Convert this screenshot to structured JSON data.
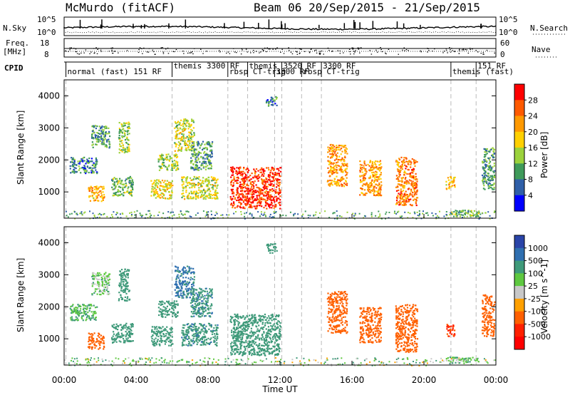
{
  "header": {
    "station": "McMurdo (fitACF)",
    "beam_date": "Beam 06  20/Sep/2015 - 21/Sep/2015"
  },
  "strip_labels": {
    "nsky": "N.Sky",
    "nsky_ticks": [
      "10^5",
      "10^0"
    ],
    "nsearch": "N.Search",
    "nsearch_ticks": [
      "10^5",
      "10^0"
    ],
    "freq_line1": "Freq.",
    "freq_line2": "[MHz]",
    "freq_ticks": [
      "18",
      "8"
    ],
    "nave": "Nave",
    "nave_ticks": [
      "60",
      "0"
    ],
    "cpid": "CPID"
  },
  "cpid_labels": [
    {
      "text": "normal (fast) 151 RF",
      "t": 0.1
    },
    {
      "text": "themis 3300 RF",
      "t": 6.0
    },
    {
      "text": "rbsp CT-trig",
      "t": 9.1
    },
    {
      "text": "themis",
      "t": 10.2
    },
    {
      "text": "3300 RF",
      "t": 11.7
    },
    {
      "text": "3520 RF",
      "t": 12.1
    },
    {
      "text": "rbsp CT-trig",
      "t": 13.2
    },
    {
      "text": "3300 RF",
      "t": 14.3
    },
    {
      "text": "themis (fast)",
      "t": 21.5
    },
    {
      "text": "151 RF",
      "t": 22.9
    }
  ],
  "chart_data": [
    {
      "type": "heatmap",
      "name": "power",
      "xlabel": "",
      "ylabel": "Slant Range [km]",
      "xlim": [
        0,
        24
      ],
      "ylim": [
        180,
        4500
      ],
      "yticks": [
        "1000",
        "2000",
        "3000",
        "4000"
      ],
      "colorbar": {
        "label": "Power [dB]",
        "ticks": [
          "28",
          "24",
          "20",
          "16",
          "12",
          "8",
          "4"
        ],
        "colors": [
          "#ff0000",
          "#ff5a00",
          "#ff9900",
          "#ffd000",
          "#9bd23c",
          "#3f9a5a",
          "#2f5fa8",
          "#0000ff"
        ]
      },
      "blobs": [
        {
          "t0": 0.3,
          "t1": 1.8,
          "r0": 1600,
          "r1": 2100,
          "v": 8
        },
        {
          "t0": 1.3,
          "t1": 2.2,
          "r0": 700,
          "r1": 1200,
          "v": 20
        },
        {
          "t0": 1.5,
          "t1": 2.5,
          "r0": 2400,
          "r1": 3100,
          "v": 10
        },
        {
          "t0": 2.6,
          "t1": 3.8,
          "r0": 900,
          "r1": 1500,
          "v": 12
        },
        {
          "t0": 3.0,
          "t1": 3.6,
          "r0": 2200,
          "r1": 3200,
          "v": 14
        },
        {
          "t0": 4.8,
          "t1": 6.0,
          "r0": 800,
          "r1": 1400,
          "v": 18
        },
        {
          "t0": 5.2,
          "t1": 6.3,
          "r0": 1700,
          "r1": 2200,
          "v": 14
        },
        {
          "t0": 6.1,
          "t1": 7.2,
          "r0": 2300,
          "r1": 3300,
          "v": 16
        },
        {
          "t0": 6.5,
          "t1": 8.5,
          "r0": 800,
          "r1": 1500,
          "v": 16
        },
        {
          "t0": 7.0,
          "t1": 8.2,
          "r0": 1700,
          "r1": 2600,
          "v": 10
        },
        {
          "t0": 9.2,
          "t1": 12.0,
          "r0": 500,
          "r1": 1800,
          "v": 28
        },
        {
          "t0": 11.2,
          "t1": 11.8,
          "r0": 3700,
          "r1": 4000,
          "v": 8
        },
        {
          "t0": 14.6,
          "t1": 15.7,
          "r0": 1200,
          "r1": 2500,
          "v": 22
        },
        {
          "t0": 16.4,
          "t1": 17.6,
          "r0": 900,
          "r1": 2000,
          "v": 22
        },
        {
          "t0": 18.4,
          "t1": 19.6,
          "r0": 600,
          "r1": 2100,
          "v": 24
        },
        {
          "t0": 21.2,
          "t1": 21.7,
          "r0": 1100,
          "r1": 1500,
          "v": 20
        },
        {
          "t0": 21.2,
          "t1": 23.0,
          "r0": 250,
          "r1": 450,
          "v": 12
        },
        {
          "t0": 23.2,
          "t1": 23.9,
          "r0": 1100,
          "r1": 2400,
          "v": 10
        }
      ]
    },
    {
      "type": "heatmap",
      "name": "velocity",
      "xlabel": "Time UT",
      "ylabel": "Slant Range [km]",
      "xlim": [
        0,
        24
      ],
      "ylim": [
        180,
        4500
      ],
      "xticks": [
        "00:00",
        "04:00",
        "08:00",
        "12:00",
        "16:00",
        "20:00",
        "00:00"
      ],
      "yticks": [
        "1000",
        "2000",
        "3000",
        "4000"
      ],
      "colorbar": {
        "label": "Velocity [m s^-1]",
        "ticks": [
          "1000",
          "500",
          "100",
          "25",
          "-25",
          "-100",
          "-500",
          "-1000"
        ],
        "colors": [
          "#2a44a8",
          "#2f6fb0",
          "#3f9a7a",
          "#5ec840",
          "#c8c8c8",
          "#ffa000",
          "#ff6000",
          "#ff2000",
          "#ff0000"
        ]
      },
      "blobs": [
        {
          "t0": 0.3,
          "t1": 1.8,
          "r0": 1600,
          "r1": 2100,
          "v": 100
        },
        {
          "t0": 1.3,
          "t1": 2.2,
          "r0": 700,
          "r1": 1200,
          "v": -300
        },
        {
          "t0": 1.5,
          "t1": 2.5,
          "r0": 2400,
          "r1": 3100,
          "v": 50
        },
        {
          "t0": 2.6,
          "t1": 3.8,
          "r0": 900,
          "r1": 1500,
          "v": 200
        },
        {
          "t0": 3.0,
          "t1": 3.6,
          "r0": 2200,
          "r1": 3200,
          "v": 200
        },
        {
          "t0": 4.8,
          "t1": 6.0,
          "r0": 800,
          "r1": 1400,
          "v": 300
        },
        {
          "t0": 5.2,
          "t1": 6.3,
          "r0": 1700,
          "r1": 2200,
          "v": 300
        },
        {
          "t0": 6.1,
          "t1": 7.2,
          "r0": 2300,
          "r1": 3300,
          "v": 600
        },
        {
          "t0": 6.5,
          "t1": 8.5,
          "r0": 800,
          "r1": 1500,
          "v": 400
        },
        {
          "t0": 7.0,
          "t1": 8.2,
          "r0": 1700,
          "r1": 2600,
          "v": 400
        },
        {
          "t0": 9.2,
          "t1": 12.0,
          "r0": 500,
          "r1": 1800,
          "v": 300
        },
        {
          "t0": 11.2,
          "t1": 11.8,
          "r0": 3700,
          "r1": 4000,
          "v": 200
        },
        {
          "t0": 14.6,
          "t1": 15.7,
          "r0": 1200,
          "r1": 2500,
          "v": -300
        },
        {
          "t0": 16.4,
          "t1": 17.6,
          "r0": 900,
          "r1": 2000,
          "v": -300
        },
        {
          "t0": 18.4,
          "t1": 19.6,
          "r0": 600,
          "r1": 2100,
          "v": -300
        },
        {
          "t0": 21.2,
          "t1": 21.7,
          "r0": 1100,
          "r1": 1500,
          "v": -600
        },
        {
          "t0": 21.2,
          "t1": 23.0,
          "r0": 250,
          "r1": 450,
          "v": 60
        },
        {
          "t0": 23.2,
          "t1": 23.9,
          "r0": 1100,
          "r1": 2400,
          "v": -300
        }
      ]
    }
  ]
}
